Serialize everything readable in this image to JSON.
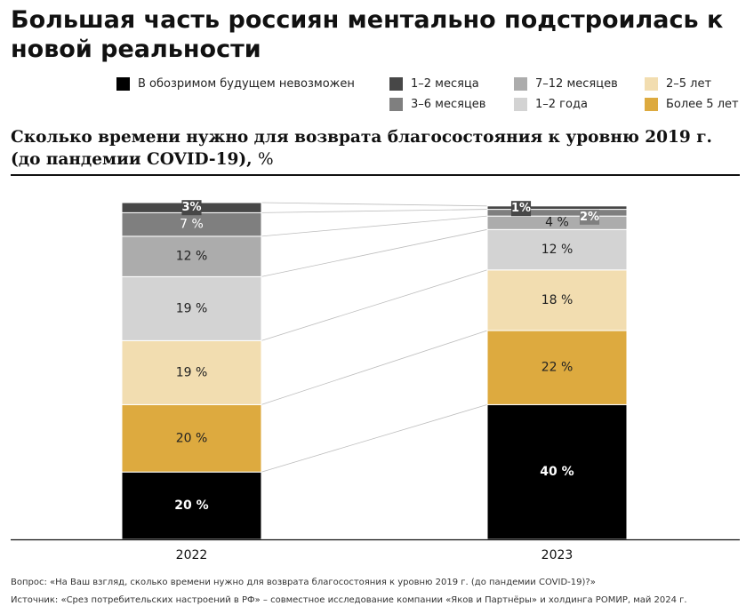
{
  "title": "Большая часть россиян ментально подстроилась к новой реальности",
  "subtitle": "Сколько времени нужно для возврата благосостояния к уровню 2019 г. (до пандемии COVID-19),",
  "subtitle_unit": "%",
  "legend": [
    {
      "label": "В обозримом будущем невозможен",
      "color": "#000000"
    },
    {
      "label": "1–2 месяца",
      "color": "#474747"
    },
    {
      "label": "3–6 месяцев",
      "color": "#7f7f7f"
    },
    {
      "label": "7–12 месяцев",
      "color": "#acacac"
    },
    {
      "label": "1–2 года",
      "color": "#d3d3d3"
    },
    {
      "label": "2–5 лет",
      "color": "#f2ddb0"
    },
    {
      "label": "Более 5 лет",
      "color": "#ddaa3f"
    }
  ],
  "chart_data": {
    "type": "bar",
    "stacked": true,
    "categories": [
      "2022",
      "2023"
    ],
    "series": [
      {
        "name": "В обозримом будущем невозможен",
        "values": [
          20,
          40
        ],
        "labels": [
          "20 %",
          "40 %"
        ]
      },
      {
        "name": "Более 5 лет",
        "values": [
          20,
          22
        ],
        "labels": [
          "20 %",
          "22 %"
        ]
      },
      {
        "name": "2–5 лет",
        "values": [
          19,
          18
        ],
        "labels": [
          "19 %",
          "18 %"
        ]
      },
      {
        "name": "1–2 года",
        "values": [
          19,
          12
        ],
        "labels": [
          "19 %",
          "12 %"
        ]
      },
      {
        "name": "7–12 месяцев",
        "values": [
          12,
          4
        ],
        "labels": [
          "12 %",
          "4 %"
        ]
      },
      {
        "name": "3–6 месяцев",
        "values": [
          7,
          2
        ],
        "labels": [
          "7 %",
          "2%"
        ]
      },
      {
        "name": "1–2 месяца",
        "values": [
          3,
          1
        ],
        "labels": [
          "3%",
          "1%"
        ]
      }
    ],
    "ylim": [
      0,
      100
    ],
    "grid": false
  },
  "footnotes": [
    "Вопрос: «На Ваш взгляд, сколько времени нужно для возврата благосостояния к уровню 2019 г. (до пандемии COVID-19)?»",
    "Источник: «Срез потребительских настроений в РФ» – совместное исследование компании «Яков и Партнёры» и холдинга РОМИР, май 2024 г."
  ]
}
